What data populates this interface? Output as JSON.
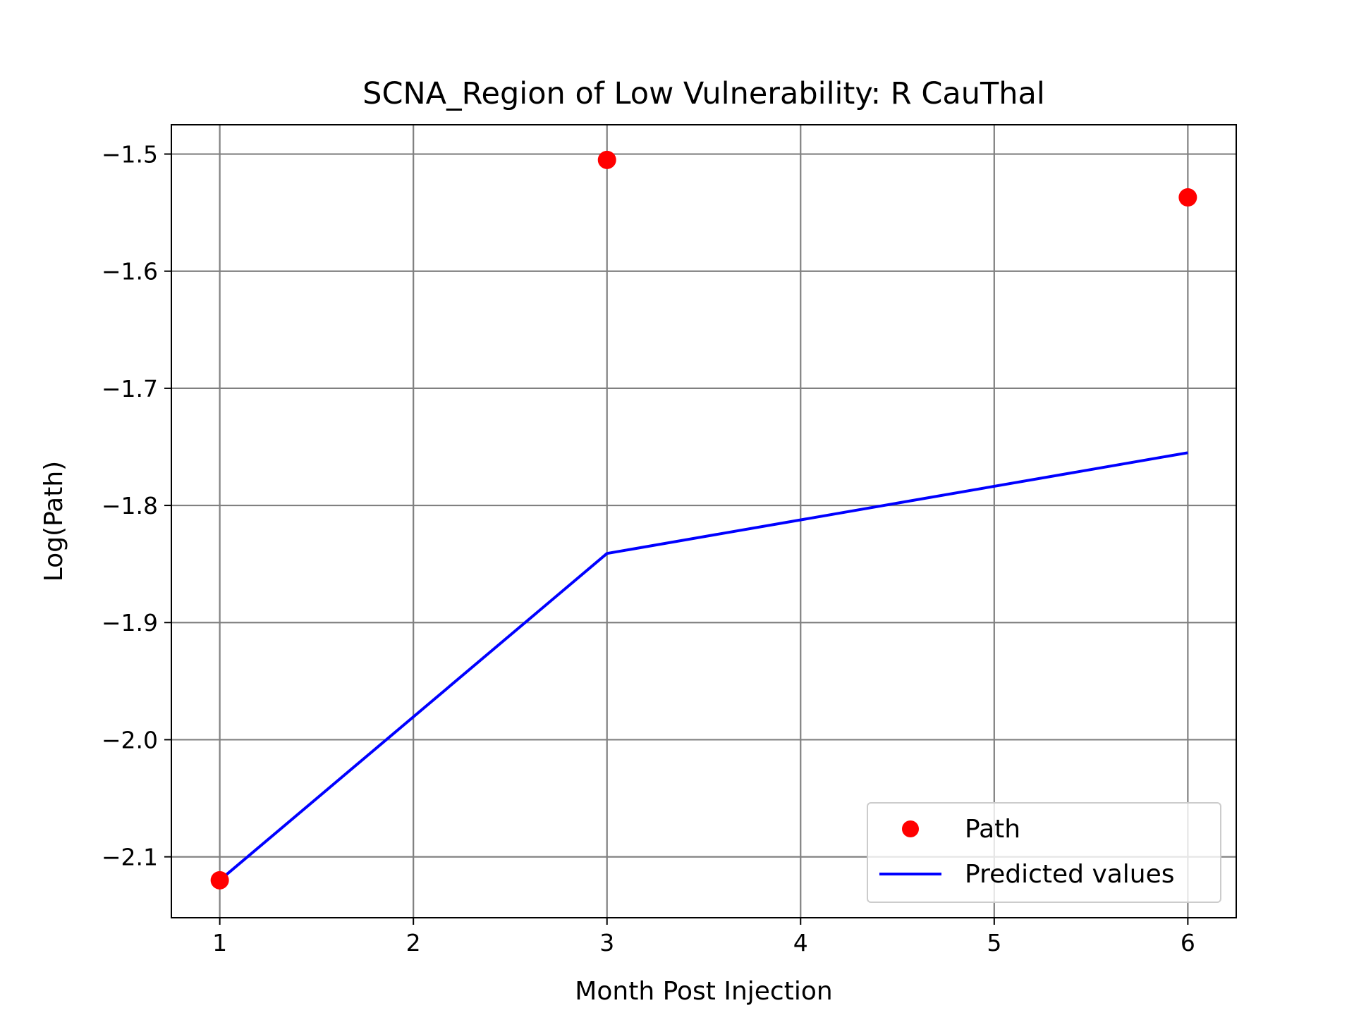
{
  "chart_data": {
    "type": "line",
    "title": "SCNA_Region of Low Vulnerability: R CauThal",
    "xlabel": "Month Post Injection",
    "ylabel": "Log(Path)",
    "xlim": [
      0.75,
      6.25
    ],
    "ylim": [
      -2.152,
      -1.475
    ],
    "xticks": [
      1,
      2,
      3,
      4,
      5,
      6
    ],
    "yticks": [
      -2.1,
      -2.0,
      -1.9,
      -1.8,
      -1.7,
      -1.6,
      -1.5
    ],
    "ytick_labels": [
      "−2.1",
      "−2.0",
      "−1.9",
      "−1.8",
      "−1.7",
      "−1.6",
      "−1.5"
    ],
    "grid": true,
    "legend_position": "lower-right",
    "series": [
      {
        "name": "Path",
        "kind": "scatter",
        "color": "#ff0000",
        "x": [
          1,
          3,
          6
        ],
        "y": [
          -2.12,
          -1.505,
          -1.537
        ]
      },
      {
        "name": "Predicted values",
        "kind": "line",
        "color": "#0000ff",
        "x": [
          1,
          3,
          6
        ],
        "y": [
          -2.12,
          -1.841,
          -1.755
        ]
      }
    ]
  }
}
